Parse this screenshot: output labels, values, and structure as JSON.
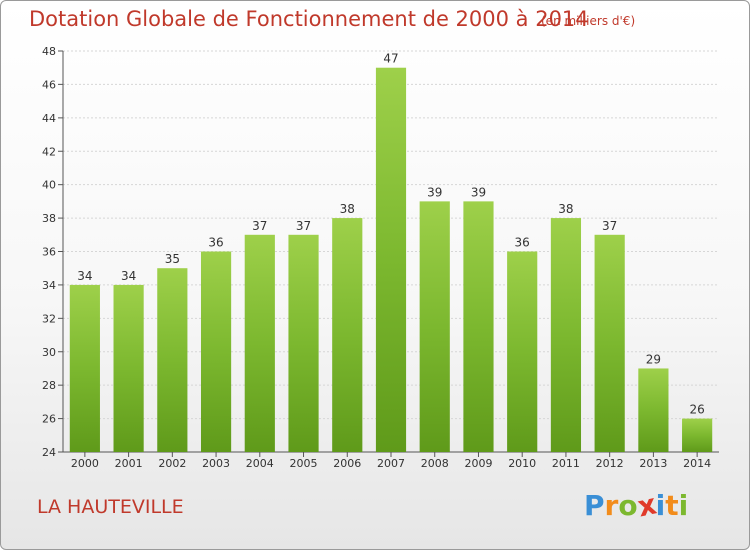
{
  "chart_data": {
    "type": "bar",
    "title": "Dotation Globale de Fonctionnement de 2000 à 2014",
    "unit_note": "(en milliers d'€)",
    "categories": [
      "2000",
      "2001",
      "2002",
      "2003",
      "2004",
      "2005",
      "2006",
      "2007",
      "2008",
      "2009",
      "2010",
      "2011",
      "2012",
      "2013",
      "2014"
    ],
    "values": [
      34,
      34,
      35,
      36,
      37,
      37,
      38,
      47,
      39,
      39,
      36,
      38,
      37,
      29,
      26
    ],
    "ylim": [
      24,
      48
    ],
    "yticks": [
      24,
      26,
      28,
      30,
      32,
      34,
      36,
      38,
      40,
      42,
      44,
      46,
      48
    ],
    "grid": true,
    "bar_color": "#7cb82f",
    "bar_color_light": "#9ed04a",
    "bar_color_dark": "#5f9a1a"
  },
  "location": "LA HAUTEVILLE",
  "logo": {
    "letters": [
      "P",
      "r",
      "o",
      "x",
      "i",
      "t",
      "i"
    ],
    "colors": [
      "#3a8fd6",
      "#f28c1b",
      "#7cb82f",
      "#e03a2a",
      "#3a8fd6",
      "#f28c1b",
      "#7cb82f"
    ]
  }
}
